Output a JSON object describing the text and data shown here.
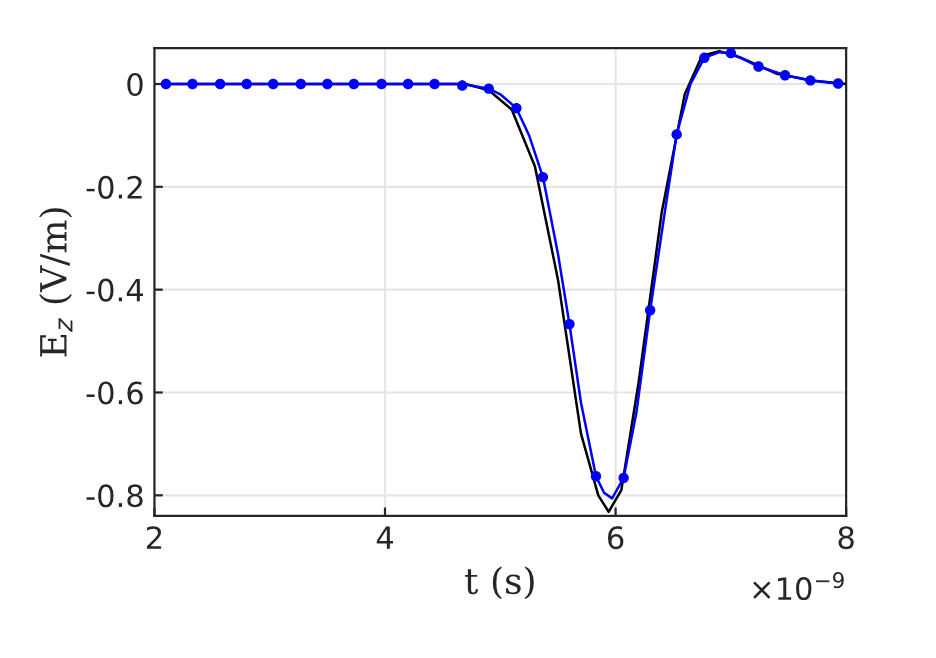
{
  "chart_data": {
    "type": "line",
    "xlabel": "t (s)",
    "ylabel": "E$_{z}$ (V/m)",
    "xlim": [
      2,
      8
    ],
    "ylim": [
      -0.84,
      0.07
    ],
    "xticks": [
      2,
      4,
      6,
      8
    ],
    "yticks": [
      {
        "value": -0.8,
        "label": "-0.8"
      },
      {
        "value": -0.6,
        "label": "-0.6"
      },
      {
        "value": -0.4,
        "label": "-0.4"
      },
      {
        "value": -0.2,
        "label": "-0.2"
      },
      {
        "value": 0,
        "label": "0"
      }
    ],
    "grid": true,
    "annotations": [
      "×10$^{−9}$"
    ],
    "series": [
      {
        "color": "#000000",
        "marker": "none",
        "x": [
          2.1,
          4.7,
          4.9,
          5.1,
          5.3,
          5.5,
          5.7,
          5.85,
          5.94,
          6.05,
          6.2,
          6.4,
          6.6,
          6.75,
          6.9,
          7.1,
          7.4,
          7.7,
          8.0
        ],
        "values": [
          0,
          0,
          -0.012,
          -0.05,
          -0.16,
          -0.38,
          -0.68,
          -0.8,
          -0.832,
          -0.79,
          -0.58,
          -0.25,
          -0.02,
          0.055,
          0.064,
          0.05,
          0.02,
          0.007,
          0.0
        ]
      },
      {
        "color": "#0000ff",
        "marker": "none",
        "x": [
          2.1,
          4.67,
          4.9,
          5.0,
          5.14,
          5.25,
          5.37,
          5.5,
          5.6,
          5.7,
          5.83,
          5.9,
          5.97,
          6.07,
          6.18,
          6.3,
          6.42,
          6.53,
          6.65,
          6.77,
          6.9,
          7.0,
          7.24,
          7.47,
          7.69,
          7.93
        ],
        "values": [
          0,
          0,
          -0.009,
          -0.02,
          -0.047,
          -0.1,
          -0.181,
          -0.33,
          -0.467,
          -0.62,
          -0.763,
          -0.795,
          -0.806,
          -0.766,
          -0.64,
          -0.44,
          -0.26,
          -0.098,
          0.0,
          0.051,
          0.062,
          0.06,
          0.034,
          0.017,
          0.007,
          0.001
        ]
      },
      {
        "type": "scatter",
        "color": "#0000ff",
        "marker": "circle",
        "x": [
          2.1,
          2.33,
          2.57,
          2.8,
          3.03,
          3.27,
          3.5,
          3.73,
          3.97,
          4.2,
          4.43,
          4.67,
          4.9,
          5.14,
          5.37,
          5.6,
          5.83,
          6.07,
          6.3,
          6.53,
          6.77,
          7.0,
          7.24,
          7.47,
          7.69,
          7.93
        ],
        "values": [
          0,
          0,
          0,
          0,
          0,
          0,
          0,
          0,
          0,
          0,
          0,
          -0.003,
          -0.009,
          -0.047,
          -0.181,
          -0.467,
          -0.763,
          -0.766,
          -0.44,
          -0.098,
          0.051,
          0.06,
          0.034,
          0.017,
          0.007,
          0.001
        ]
      }
    ]
  }
}
